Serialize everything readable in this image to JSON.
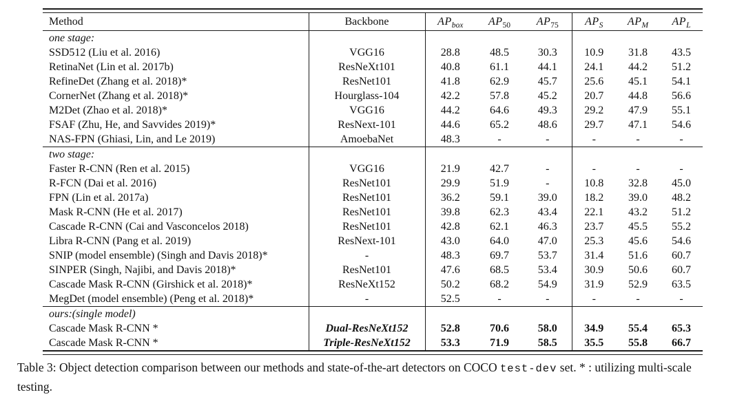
{
  "page": {
    "caption": {
      "prefix": "Table 3: Object detection comparison between our methods and state-of-the-art detectors on COCO ",
      "code": "test-dev",
      "suffix": " set. * : utilizing multi-scale testing."
    }
  },
  "table": {
    "header": {
      "method": "Method",
      "backbone": "Backbone",
      "metrics": [
        {
          "base": "AP",
          "sub": "box",
          "italic_sub": true
        },
        {
          "base": "AP",
          "sub": "50",
          "italic_sub": false
        },
        {
          "base": "AP",
          "sub": "75",
          "italic_sub": false
        },
        {
          "base": "AP",
          "sub": "S",
          "italic_sub": true
        },
        {
          "base": "AP",
          "sub": "M",
          "italic_sub": true
        },
        {
          "base": "AP",
          "sub": "L",
          "italic_sub": true
        }
      ]
    },
    "sections": [
      {
        "label": "one stage:",
        "rows": [
          {
            "method": "SSD512 (Liu et al. 2016)",
            "backbone": "VGG16",
            "values": [
              "28.8",
              "48.5",
              "30.3",
              "10.9",
              "31.8",
              "43.5"
            ]
          },
          {
            "method": "RetinaNet (Lin et al. 2017b)",
            "backbone": "ResNeXt101",
            "values": [
              "40.8",
              "61.1",
              "44.1",
              "24.1",
              "44.2",
              "51.2"
            ]
          },
          {
            "method": "RefineDet (Zhang et al. 2018)*",
            "backbone": "ResNet101",
            "values": [
              "41.8",
              "62.9",
              "45.7",
              "25.6",
              "45.1",
              "54.1"
            ]
          },
          {
            "method": "CornerNet (Zhang et al. 2018)*",
            "backbone": "Hourglass-104",
            "values": [
              "42.2",
              "57.8",
              "45.2",
              "20.7",
              "44.8",
              "56.6"
            ]
          },
          {
            "method": "M2Det (Zhao et al. 2018)*",
            "backbone": "VGG16",
            "values": [
              "44.2",
              "64.6",
              "49.3",
              "29.2",
              "47.9",
              "55.1"
            ]
          },
          {
            "method": "FSAF (Zhu, He, and Savvides 2019)*",
            "backbone": "ResNext-101",
            "values": [
              "44.6",
              "65.2",
              "48.6",
              "29.7",
              "47.1",
              "54.6"
            ]
          },
          {
            "method": "NAS-FPN (Ghiasi, Lin, and Le 2019)",
            "backbone": "AmoebaNet",
            "values": [
              "48.3",
              "-",
              "-",
              "-",
              "-",
              "-"
            ]
          }
        ]
      },
      {
        "label": "two stage:",
        "rows": [
          {
            "method": "Faster R-CNN (Ren et al. 2015)",
            "backbone": "VGG16",
            "values": [
              "21.9",
              "42.7",
              "-",
              "-",
              "-",
              "-"
            ]
          },
          {
            "method": "R-FCN (Dai et al. 2016)",
            "backbone": "ResNet101",
            "values": [
              "29.9",
              "51.9",
              "-",
              "10.8",
              "32.8",
              "45.0"
            ]
          },
          {
            "method": "FPN (Lin et al. 2017a)",
            "backbone": "ResNet101",
            "values": [
              "36.2",
              "59.1",
              "39.0",
              "18.2",
              "39.0",
              "48.2"
            ]
          },
          {
            "method": "Mask R-CNN (He et al. 2017)",
            "backbone": "ResNet101",
            "values": [
              "39.8",
              "62.3",
              "43.4",
              "22.1",
              "43.2",
              "51.2"
            ]
          },
          {
            "method": "Cascade R-CNN (Cai and Vasconcelos 2018)",
            "backbone": "ResNet101",
            "values": [
              "42.8",
              "62.1",
              "46.3",
              "23.7",
              "45.5",
              "55.2"
            ]
          },
          {
            "method": "Libra R-CNN (Pang et al. 2019)",
            "backbone": "ResNext-101",
            "values": [
              "43.0",
              "64.0",
              "47.0",
              "25.3",
              "45.6",
              "54.6"
            ]
          },
          {
            "method": "SNIP (model ensemble) (Singh and Davis 2018)*",
            "backbone": "-",
            "values": [
              "48.3",
              "69.7",
              "53.7",
              "31.4",
              "51.6",
              "60.7"
            ]
          },
          {
            "method": "SINPER (Singh, Najibi, and Davis 2018)*",
            "backbone": "ResNet101",
            "values": [
              "47.6",
              "68.5",
              "53.4",
              "30.9",
              "50.6",
              "60.7"
            ]
          },
          {
            "method": "Cascade Mask R-CNN (Girshick et al. 2018)*",
            "backbone": "ResNeXt152",
            "values": [
              "50.2",
              "68.2",
              "54.9",
              "31.9",
              "52.9",
              "63.5"
            ]
          },
          {
            "method": "MegDet (model ensemble) (Peng et al. 2018)*",
            "backbone": "-",
            "values": [
              "52.5",
              "-",
              "-",
              "-",
              "-",
              "-"
            ]
          }
        ]
      },
      {
        "label": "ours:(single model)",
        "rows": [
          {
            "method": "Cascade Mask R-CNN *",
            "backbone": "Dual-ResNeXt152",
            "values": [
              "52.8",
              "70.6",
              "58.0",
              "34.9",
              "55.4",
              "65.3"
            ],
            "bold": true
          },
          {
            "method": "Cascade Mask R-CNN *",
            "backbone": "Triple-ResNeXt152",
            "values": [
              "53.3",
              "71.9",
              "58.5",
              "35.5",
              "55.8",
              "66.7"
            ],
            "bold": true
          }
        ]
      }
    ]
  }
}
